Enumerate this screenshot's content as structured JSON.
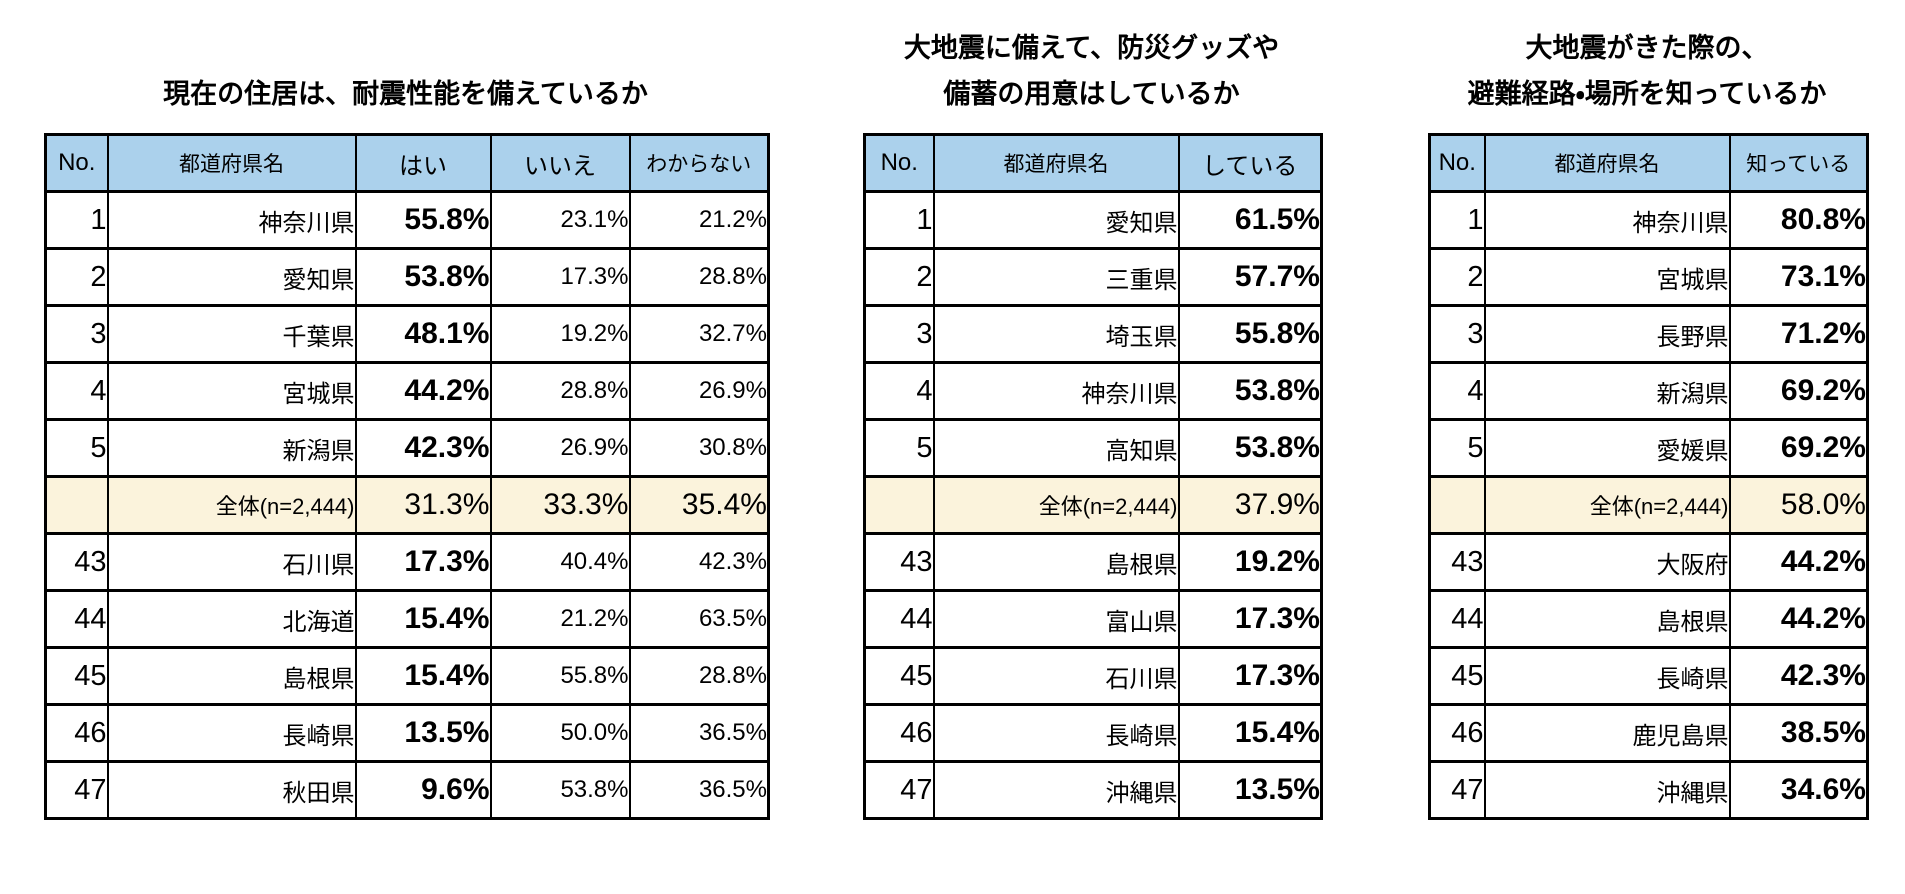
{
  "chart_data": [
    {
      "type": "table",
      "title": "現在の住居は、耐震性能を備えているか",
      "title_lines": [
        "現在の住居は、耐震性能を備えているか"
      ],
      "columns": [
        "No.",
        "都道府県名",
        "はい",
        "いいえ",
        "わからない"
      ],
      "total_row_index": 5,
      "rows": [
        [
          "1",
          "神奈川県",
          "55.8%",
          "23.1%",
          "21.2%"
        ],
        [
          "2",
          "愛知県",
          "53.8%",
          "17.3%",
          "28.8%"
        ],
        [
          "3",
          "千葉県",
          "48.1%",
          "19.2%",
          "32.7%"
        ],
        [
          "4",
          "宮城県",
          "44.2%",
          "28.8%",
          "26.9%"
        ],
        [
          "5",
          "新潟県",
          "42.3%",
          "26.9%",
          "30.8%"
        ],
        [
          "",
          "全体(n=2,444)",
          "31.3%",
          "33.3%",
          "35.4%"
        ],
        [
          "43",
          "石川県",
          "17.3%",
          "40.4%",
          "42.3%"
        ],
        [
          "44",
          "北海道",
          "15.4%",
          "21.2%",
          "63.5%"
        ],
        [
          "45",
          "島根県",
          "15.4%",
          "55.8%",
          "28.8%"
        ],
        [
          "46",
          "長崎県",
          "13.5%",
          "50.0%",
          "36.5%"
        ],
        [
          "47",
          "秋田県",
          "9.6%",
          "53.8%",
          "36.5%"
        ]
      ]
    },
    {
      "type": "table",
      "title": "大地震に備えて、防災グッズや備蓄の用意はしているか",
      "title_lines": [
        "大地震に備えて、防災グッズや",
        "備蓄の用意はしているか"
      ],
      "columns": [
        "No.",
        "都道府県名",
        "している"
      ],
      "total_row_index": 5,
      "rows": [
        [
          "1",
          "愛知県",
          "61.5%"
        ],
        [
          "2",
          "三重県",
          "57.7%"
        ],
        [
          "3",
          "埼玉県",
          "55.8%"
        ],
        [
          "4",
          "神奈川県",
          "53.8%"
        ],
        [
          "5",
          "高知県",
          "53.8%"
        ],
        [
          "",
          "全体(n=2,444)",
          "37.9%"
        ],
        [
          "43",
          "島根県",
          "19.2%"
        ],
        [
          "44",
          "富山県",
          "17.3%"
        ],
        [
          "45",
          "石川県",
          "17.3%"
        ],
        [
          "46",
          "長崎県",
          "15.4%"
        ],
        [
          "47",
          "沖縄県",
          "13.5%"
        ]
      ]
    },
    {
      "type": "table",
      "title": "大地震がきた際の、避難経路・場所を知っているか",
      "title_lines": [
        "大地震がきた際の、",
        "避難経路・場所を知っているか"
      ],
      "columns": [
        "No.",
        "都道府県名",
        "知っている"
      ],
      "total_row_index": 5,
      "rows": [
        [
          "1",
          "神奈川県",
          "80.8%"
        ],
        [
          "2",
          "宮城県",
          "73.1%"
        ],
        [
          "3",
          "長野県",
          "71.2%"
        ],
        [
          "4",
          "新潟県",
          "69.2%"
        ],
        [
          "5",
          "愛媛県",
          "69.2%"
        ],
        [
          "",
          "全体(n=2,444)",
          "58.0%"
        ],
        [
          "43",
          "大阪府",
          "44.2%"
        ],
        [
          "44",
          "島根県",
          "44.2%"
        ],
        [
          "45",
          "長崎県",
          "42.3%"
        ],
        [
          "46",
          "鹿児島県",
          "38.5%"
        ],
        [
          "47",
          "沖縄県",
          "34.6%"
        ]
      ]
    }
  ],
  "colors": {
    "header_bg": "#abd1ec",
    "total_row_bg": "#fbf3dc",
    "border": "#000000",
    "text": "#000000",
    "background": "#ffffff"
  }
}
